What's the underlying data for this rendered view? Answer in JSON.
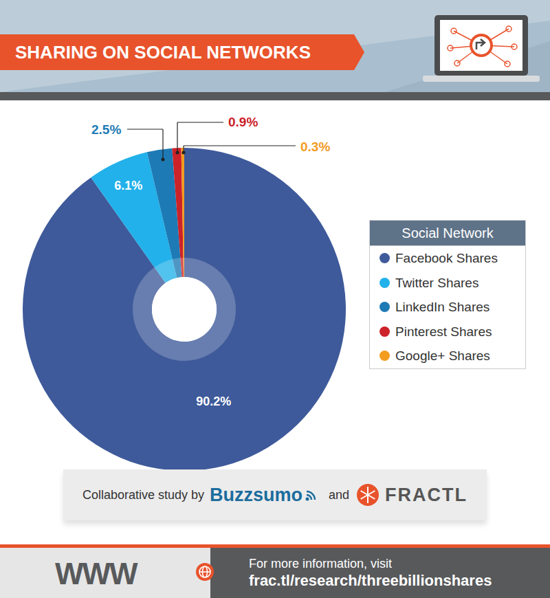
{
  "chart_data": {
    "type": "pie",
    "title": "SHARING ON SOCIAL NETWORKS",
    "legend_title": "Social Network",
    "categories": [
      "Facebook Shares",
      "Twitter Shares",
      "LinkedIn Shares",
      "Pinterest Shares",
      "Google+ Shares"
    ],
    "values": [
      90.2,
      6.1,
      2.5,
      0.9,
      0.3
    ],
    "value_labels": [
      "90.2%",
      "6.1%",
      "2.5%",
      "0.9%",
      "0.3%"
    ],
    "colors": [
      "#3e5a9a",
      "#22b1ea",
      "#1d7ab5",
      "#cc2229",
      "#f39c1f"
    ],
    "data_labels": true,
    "legend": "right"
  },
  "credits": {
    "prefix": "Collaborative study by",
    "brands": [
      "Buzzsumo",
      "FRACTL"
    ],
    "joiner": "and"
  },
  "footer": {
    "icon_text": "WWW",
    "text": "For more information, visit",
    "url": "frac.tl/research/threebillionshares"
  }
}
